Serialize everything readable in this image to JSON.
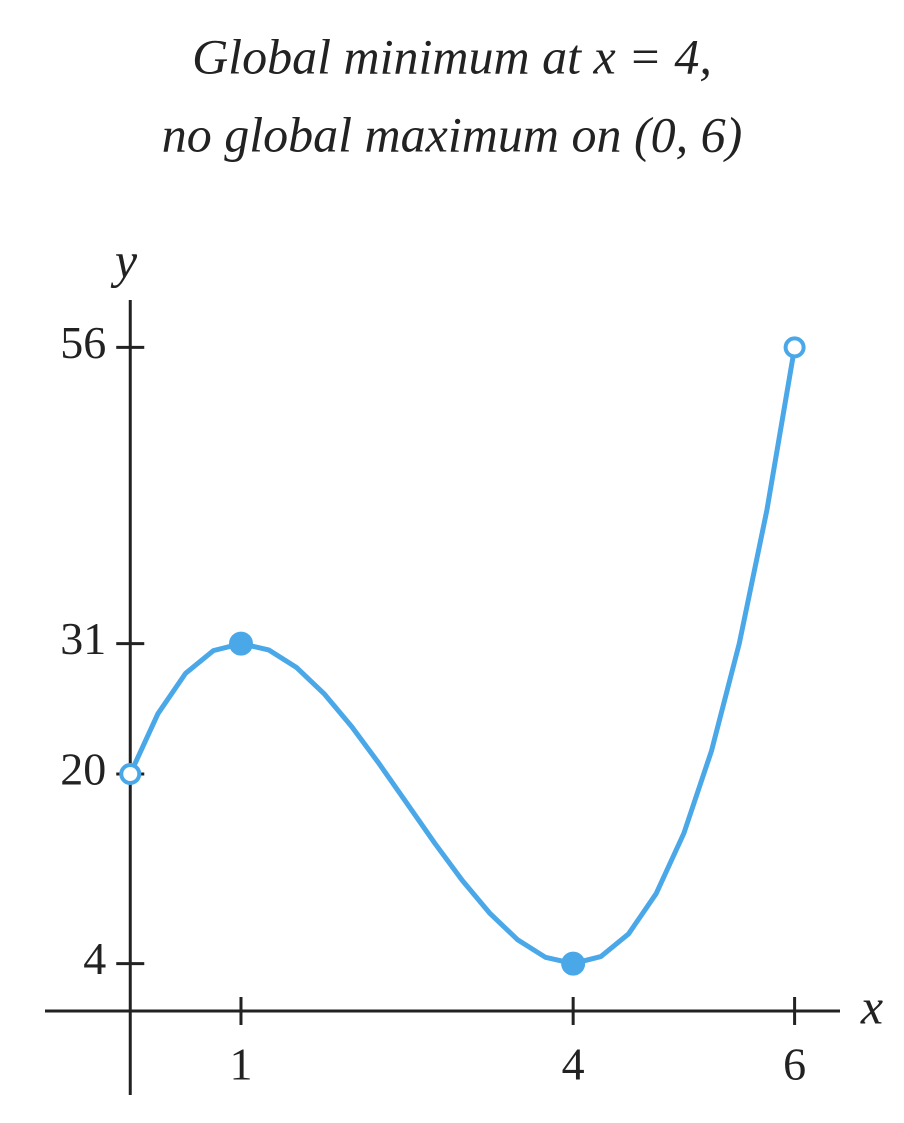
{
  "chart_data": {
    "type": "line",
    "title": [
      "Global minimum at x = 4,",
      "no global maximum on (0, 6)"
    ],
    "x_label": "x",
    "y_label": "y",
    "x": [
      0,
      0.25,
      0.5,
      0.75,
      1,
      1.25,
      1.5,
      1.75,
      2,
      2.25,
      2.5,
      2.75,
      3,
      3.25,
      3.5,
      3.75,
      4,
      4.25,
      4.5,
      4.75,
      5,
      5.25,
      5.5,
      5.75,
      6
    ],
    "series": [
      {
        "color": "#4aa8e8",
        "values": [
          20,
          25.09,
          28.5,
          30.41,
          31,
          30.47,
          29,
          26.78,
          24,
          20.84,
          17.5,
          14.16,
          11,
          8.22,
          6,
          4.53,
          4,
          4.59,
          6.5,
          9.91,
          15,
          21.97,
          31,
          42.28,
          56
        ]
      }
    ],
    "points": [
      {
        "x": 0,
        "y": 20,
        "filled": false
      },
      {
        "x": 1,
        "y": 31,
        "filled": true
      },
      {
        "x": 4,
        "y": 4,
        "filled": true
      },
      {
        "x": 6,
        "y": 56,
        "filled": false
      }
    ],
    "xlim": [
      -0.77,
      6.41
    ],
    "ylim": [
      -7.09,
      60
    ],
    "xticks": [
      1,
      4,
      6
    ],
    "yticks": [
      4,
      20,
      31,
      56
    ]
  }
}
